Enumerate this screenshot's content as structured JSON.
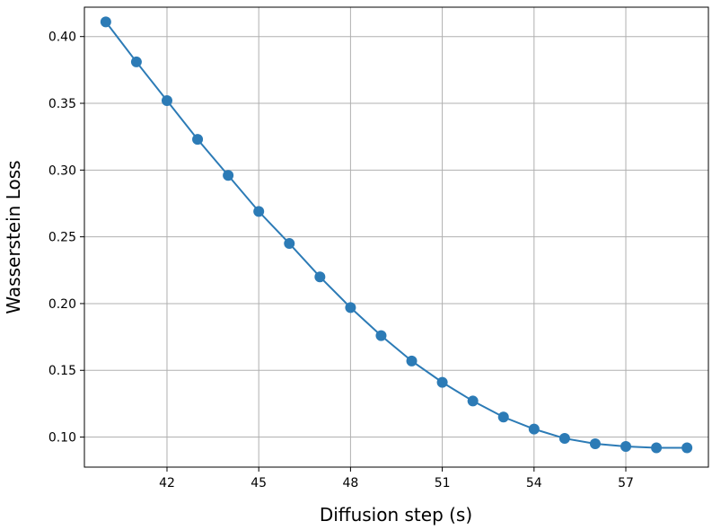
{
  "chart_data": {
    "type": "line",
    "title": "",
    "xlabel": "Diffusion step (s)",
    "ylabel": "Wasserstein Loss",
    "xlim": [
      39.3,
      59.7
    ],
    "ylim": [
      0.0775,
      0.422
    ],
    "xticks": [
      42,
      45,
      48,
      51,
      54,
      57
    ],
    "xtick_labels": [
      "42",
      "45",
      "48",
      "51",
      "54",
      "57"
    ],
    "yticks": [
      0.1,
      0.15,
      0.2,
      0.25,
      0.3,
      0.35,
      0.4
    ],
    "ytick_labels": [
      "0.10",
      "0.15",
      "0.20",
      "0.25",
      "0.30",
      "0.35",
      "0.40"
    ],
    "grid": true,
    "marker": "circle",
    "color": "#2c7bb6",
    "series": [
      {
        "x": [
          40,
          41,
          42,
          43,
          44,
          45,
          46,
          47,
          48,
          49,
          50,
          51,
          52,
          53,
          54,
          55,
          56,
          57,
          58,
          59
        ],
        "values": [
          0.411,
          0.381,
          0.352,
          0.323,
          0.296,
          0.269,
          0.245,
          0.22,
          0.197,
          0.176,
          0.157,
          0.141,
          0.127,
          0.115,
          0.106,
          0.099,
          0.095,
          0.093,
          0.092,
          0.092
        ]
      }
    ]
  }
}
